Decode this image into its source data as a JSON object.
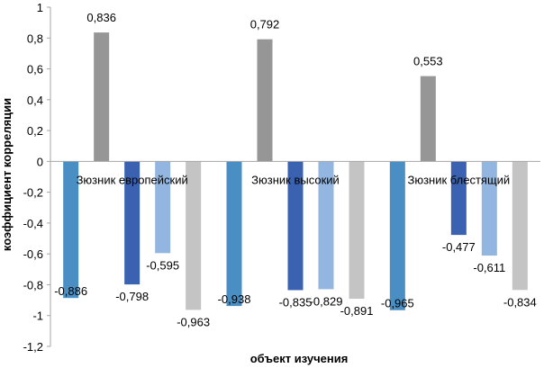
{
  "chart_data": {
    "type": "bar",
    "xlabel": "объект изучения",
    "ylabel": "коэффициент корреляции",
    "ylim": [
      -1.2,
      1
    ],
    "yticks": [
      1,
      0.8,
      0.6,
      0.4,
      0.2,
      0,
      -0.2,
      -0.4,
      -0.6,
      -0.8,
      -1,
      -1.2
    ],
    "ytick_labels": [
      "1",
      "0,8",
      "0,6",
      "0,4",
      "0,2",
      "0",
      "-0,2",
      "-0,4",
      "-0,6",
      "-0,8",
      "-1",
      "-1,2"
    ],
    "grid": false,
    "legend": "none",
    "categories": [
      "Зюзник европейский",
      "Зюзник высокий",
      "Зюзник блестящий"
    ],
    "series": [
      {
        "color": "#4a8fc4",
        "values": [
          -0.886,
          -0.938,
          -0.965
        ],
        "labels": [
          "-0,886",
          "-0,938",
          "-0,965"
        ]
      },
      {
        "color": "#969696",
        "values": [
          0.836,
          0.792,
          0.553
        ],
        "labels": [
          "0,836",
          "0,792",
          "0,553"
        ]
      },
      {
        "color": "#3a62b0",
        "values": [
          -0.798,
          -0.835,
          -0.477
        ],
        "labels": [
          "-0,798",
          "-0,835",
          "-0,477"
        ]
      },
      {
        "color": "#93b6e0",
        "values": [
          -0.595,
          -0.829,
          -0.611
        ],
        "labels": [
          "-0,595",
          "-0,829",
          "-0,611"
        ]
      },
      {
        "color": "#c4c4c4",
        "values": [
          -0.963,
          -0.891,
          -0.834
        ],
        "labels": [
          "-0,963",
          "-0,891",
          "-0,834"
        ]
      }
    ]
  }
}
